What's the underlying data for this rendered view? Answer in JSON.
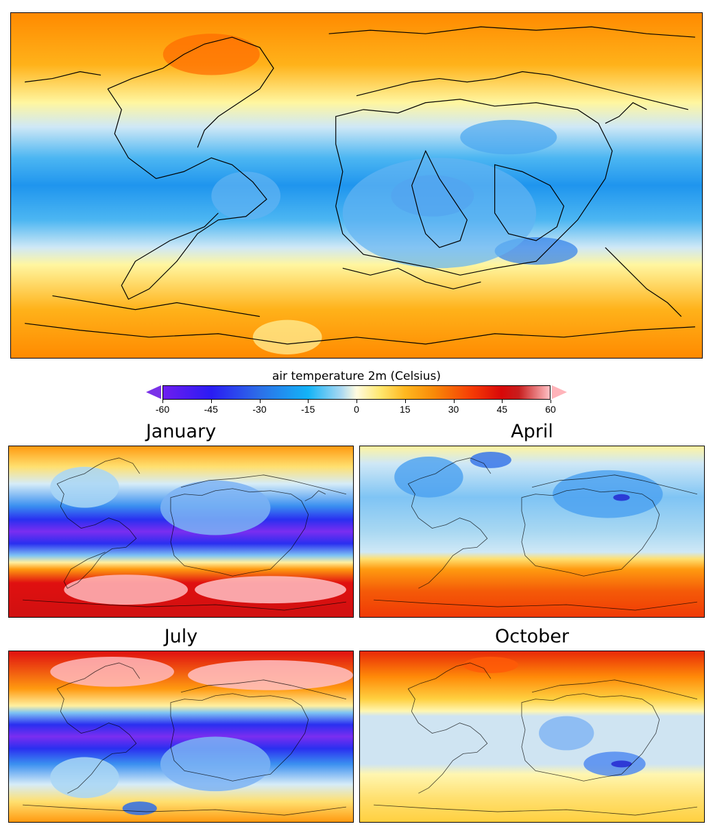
{
  "colorbar": {
    "title": "air temperature 2m (Celsius)",
    "ticks": [
      "-60",
      "-45",
      "-30",
      "-15",
      "0",
      "15",
      "30",
      "45",
      "60"
    ],
    "range": [
      -60,
      60
    ],
    "extend": "both"
  },
  "panels": {
    "january": {
      "title": "January"
    },
    "april": {
      "title": "April"
    },
    "july": {
      "title": "July"
    },
    "october": {
      "title": "October"
    }
  },
  "colors": {
    "below_min": "#7a32e8",
    "above_max": "#ffb4ba",
    "coastline": "#000000"
  }
}
